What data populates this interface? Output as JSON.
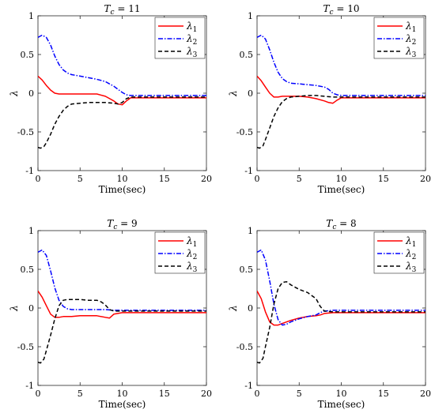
{
  "chart_data": [
    {
      "type": "line",
      "title": "T_c = 11",
      "title_parts": {
        "symbol": "T",
        "subscript": "c",
        "rest": " = 11"
      },
      "xlabel": "Time(sec)",
      "ylabel": "λ",
      "xlim": [
        0,
        20
      ],
      "ylim": [
        -1,
        1
      ],
      "xticks": [
        0,
        5,
        10,
        15,
        20
      ],
      "yticks": [
        -1,
        -0.5,
        0,
        0.5,
        1
      ],
      "ytick_labels": [
        "-1",
        "-0.5",
        "0",
        "0.5",
        "1"
      ],
      "legend_position": "top-right",
      "series": [
        {
          "name": "λ1",
          "symbol": "λ",
          "sub": "1",
          "color": "#ff0000",
          "dash": "solid",
          "x": [
            0,
            0.5,
            1,
            1.5,
            2,
            2.5,
            3,
            5,
            7,
            8,
            9,
            9.5,
            10,
            10.5,
            11,
            20
          ],
          "y": [
            0.22,
            0.17,
            0.1,
            0.04,
            0.0,
            -0.01,
            -0.01,
            -0.01,
            -0.01,
            -0.04,
            -0.1,
            -0.14,
            -0.15,
            -0.1,
            -0.06,
            -0.06
          ]
        },
        {
          "name": "λ2",
          "symbol": "λ",
          "sub": "2",
          "color": "#0000ff",
          "dash": "dashdot",
          "x": [
            0,
            0.5,
            1,
            1.5,
            2,
            2.5,
            3,
            3.5,
            4,
            5,
            7,
            8,
            9,
            9.5,
            10,
            10.5,
            11,
            20
          ],
          "y": [
            0.72,
            0.75,
            0.72,
            0.62,
            0.48,
            0.37,
            0.3,
            0.26,
            0.24,
            0.22,
            0.18,
            0.15,
            0.09,
            0.05,
            0.01,
            -0.02,
            -0.03,
            -0.03
          ]
        },
        {
          "name": "λ3",
          "symbol": "λ",
          "sub": "3",
          "color": "#000000",
          "dash": "dashed",
          "x": [
            0,
            0.3,
            0.7,
            1,
            1.5,
            2,
            2.5,
            3,
            3.5,
            4,
            5,
            6,
            7,
            8,
            9,
            9.5,
            10,
            10.5,
            11,
            20
          ],
          "y": [
            -0.7,
            -0.71,
            -0.69,
            -0.64,
            -0.53,
            -0.4,
            -0.3,
            -0.22,
            -0.17,
            -0.14,
            -0.13,
            -0.12,
            -0.12,
            -0.12,
            -0.13,
            -0.14,
            -0.12,
            -0.07,
            -0.05,
            -0.05
          ]
        }
      ]
    },
    {
      "type": "line",
      "title": "T_c = 10",
      "title_parts": {
        "symbol": "T",
        "subscript": "c",
        "rest": " = 10"
      },
      "xlabel": "Time(sec)",
      "ylabel": "λ",
      "xlim": [
        0,
        20
      ],
      "ylim": [
        -1,
        1
      ],
      "xticks": [
        0,
        5,
        10,
        15,
        20
      ],
      "yticks": [
        -1,
        -0.5,
        0,
        0.5,
        1
      ],
      "ytick_labels": [
        "-1",
        "-0.5",
        "0",
        "0.5",
        "1"
      ],
      "legend_position": "top-right",
      "series": [
        {
          "name": "λ1",
          "symbol": "λ",
          "sub": "1",
          "color": "#ff0000",
          "dash": "solid",
          "x": [
            0,
            0.5,
            1,
            1.5,
            2,
            2.5,
            3,
            4,
            5,
            6,
            7,
            8,
            8.5,
            9,
            9.5,
            10,
            20
          ],
          "y": [
            0.22,
            0.16,
            0.08,
            0.0,
            -0.05,
            -0.05,
            -0.04,
            -0.04,
            -0.04,
            -0.05,
            -0.07,
            -0.1,
            -0.12,
            -0.13,
            -0.09,
            -0.06,
            -0.06
          ]
        },
        {
          "name": "λ2",
          "symbol": "λ",
          "sub": "2",
          "color": "#0000ff",
          "dash": "dashdot",
          "x": [
            0,
            0.5,
            1,
            1.5,
            2,
            2.5,
            3,
            3.5,
            4,
            5,
            6,
            7,
            8,
            8.5,
            9,
            9.5,
            10,
            20
          ],
          "y": [
            0.72,
            0.75,
            0.7,
            0.56,
            0.4,
            0.27,
            0.19,
            0.15,
            0.13,
            0.12,
            0.11,
            0.1,
            0.08,
            0.05,
            0.0,
            -0.02,
            -0.03,
            -0.03
          ]
        },
        {
          "name": "λ3",
          "symbol": "λ",
          "sub": "3",
          "color": "#000000",
          "dash": "dashed",
          "x": [
            0,
            0.3,
            0.7,
            1,
            1.5,
            2,
            2.5,
            3,
            3.5,
            4,
            5,
            6,
            7,
            8,
            9,
            10,
            20
          ],
          "y": [
            -0.7,
            -0.71,
            -0.68,
            -0.6,
            -0.45,
            -0.3,
            -0.19,
            -0.11,
            -0.07,
            -0.05,
            -0.04,
            -0.03,
            -0.03,
            -0.04,
            -0.05,
            -0.05,
            -0.05
          ]
        }
      ]
    },
    {
      "type": "line",
      "title": "T_c = 9",
      "title_parts": {
        "symbol": "T",
        "subscript": "c",
        "rest": " = 9"
      },
      "xlabel": "Time(sec)",
      "ylabel": "λ",
      "xlim": [
        0,
        20
      ],
      "ylim": [
        -1,
        1
      ],
      "xticks": [
        0,
        5,
        10,
        15,
        20
      ],
      "yticks": [
        -1,
        -0.5,
        0,
        0.5,
        1
      ],
      "ytick_labels": [
        "-1",
        "-0.5",
        "0",
        "0.5",
        "1"
      ],
      "legend_position": "top-right",
      "series": [
        {
          "name": "λ1",
          "symbol": "λ",
          "sub": "1",
          "color": "#ff0000",
          "dash": "solid",
          "x": [
            0,
            0.5,
            1,
            1.5,
            2,
            2.5,
            3,
            4,
            5,
            6,
            7,
            8,
            8.5,
            9,
            10,
            20
          ],
          "y": [
            0.22,
            0.14,
            0.03,
            -0.08,
            -0.12,
            -0.12,
            -0.11,
            -0.11,
            -0.1,
            -0.1,
            -0.1,
            -0.12,
            -0.13,
            -0.08,
            -0.06,
            -0.06
          ]
        },
        {
          "name": "λ2",
          "symbol": "λ",
          "sub": "2",
          "color": "#0000ff",
          "dash": "dashdot",
          "x": [
            0,
            0.5,
            1,
            1.5,
            2,
            2.5,
            3,
            3.5,
            4,
            6,
            8,
            9,
            20
          ],
          "y": [
            0.72,
            0.75,
            0.68,
            0.48,
            0.26,
            0.1,
            0.02,
            -0.01,
            -0.02,
            -0.02,
            -0.02,
            -0.03,
            -0.03
          ]
        },
        {
          "name": "λ3",
          "symbol": "λ",
          "sub": "3",
          "color": "#000000",
          "dash": "dashed",
          "x": [
            0,
            0.3,
            0.7,
            1,
            1.5,
            2,
            2.5,
            3,
            3.5,
            4,
            5,
            6,
            7,
            7.5,
            8,
            8.5,
            9,
            10,
            20
          ],
          "y": [
            -0.7,
            -0.71,
            -0.66,
            -0.55,
            -0.35,
            -0.14,
            0.03,
            0.1,
            0.11,
            0.11,
            0.11,
            0.1,
            0.1,
            0.08,
            0.04,
            -0.02,
            -0.04,
            -0.04,
            -0.04
          ]
        }
      ]
    },
    {
      "type": "line",
      "title": "T_c = 8",
      "title_parts": {
        "symbol": "T",
        "subscript": "c",
        "rest": " = 8"
      },
      "xlabel": "Time(sec)",
      "ylabel": "λ",
      "xlim": [
        0,
        20
      ],
      "ylim": [
        -1,
        1
      ],
      "xticks": [
        0,
        5,
        10,
        15,
        20
      ],
      "yticks": [
        -1,
        -0.5,
        0,
        0.5,
        1
      ],
      "ytick_labels": [
        "-1",
        "-0.5",
        "0",
        "0.5",
        "1"
      ],
      "legend_position": "top-right",
      "series": [
        {
          "name": "λ1",
          "symbol": "λ",
          "sub": "1",
          "color": "#ff0000",
          "dash": "solid",
          "x": [
            0,
            0.5,
            1,
            1.5,
            2,
            2.5,
            3,
            4,
            5,
            6,
            7,
            7.5,
            8,
            9,
            20
          ],
          "y": [
            0.22,
            0.12,
            -0.05,
            -0.18,
            -0.22,
            -0.22,
            -0.2,
            -0.16,
            -0.13,
            -0.11,
            -0.1,
            -0.09,
            -0.07,
            -0.06,
            -0.06
          ]
        },
        {
          "name": "λ2",
          "symbol": "λ",
          "sub": "2",
          "color": "#0000ff",
          "dash": "dashdot",
          "x": [
            0,
            0.5,
            1,
            1.5,
            2,
            2.5,
            3,
            3.5,
            4,
            5,
            6,
            7,
            7.5,
            8,
            9,
            20
          ],
          "y": [
            0.72,
            0.75,
            0.62,
            0.35,
            0.05,
            -0.15,
            -0.22,
            -0.21,
            -0.18,
            -0.14,
            -0.11,
            -0.09,
            -0.06,
            -0.04,
            -0.03,
            -0.03
          ]
        },
        {
          "name": "λ3",
          "symbol": "λ",
          "sub": "3",
          "color": "#000000",
          "dash": "dashed",
          "x": [
            0,
            0.3,
            0.7,
            1,
            1.5,
            2,
            2.5,
            3,
            3.5,
            4,
            5,
            6,
            7,
            7.5,
            8,
            9,
            20
          ],
          "y": [
            -0.7,
            -0.71,
            -0.65,
            -0.5,
            -0.25,
            0.05,
            0.25,
            0.33,
            0.34,
            0.3,
            0.24,
            0.2,
            0.12,
            0.02,
            -0.04,
            -0.05,
            -0.05
          ]
        }
      ]
    }
  ]
}
